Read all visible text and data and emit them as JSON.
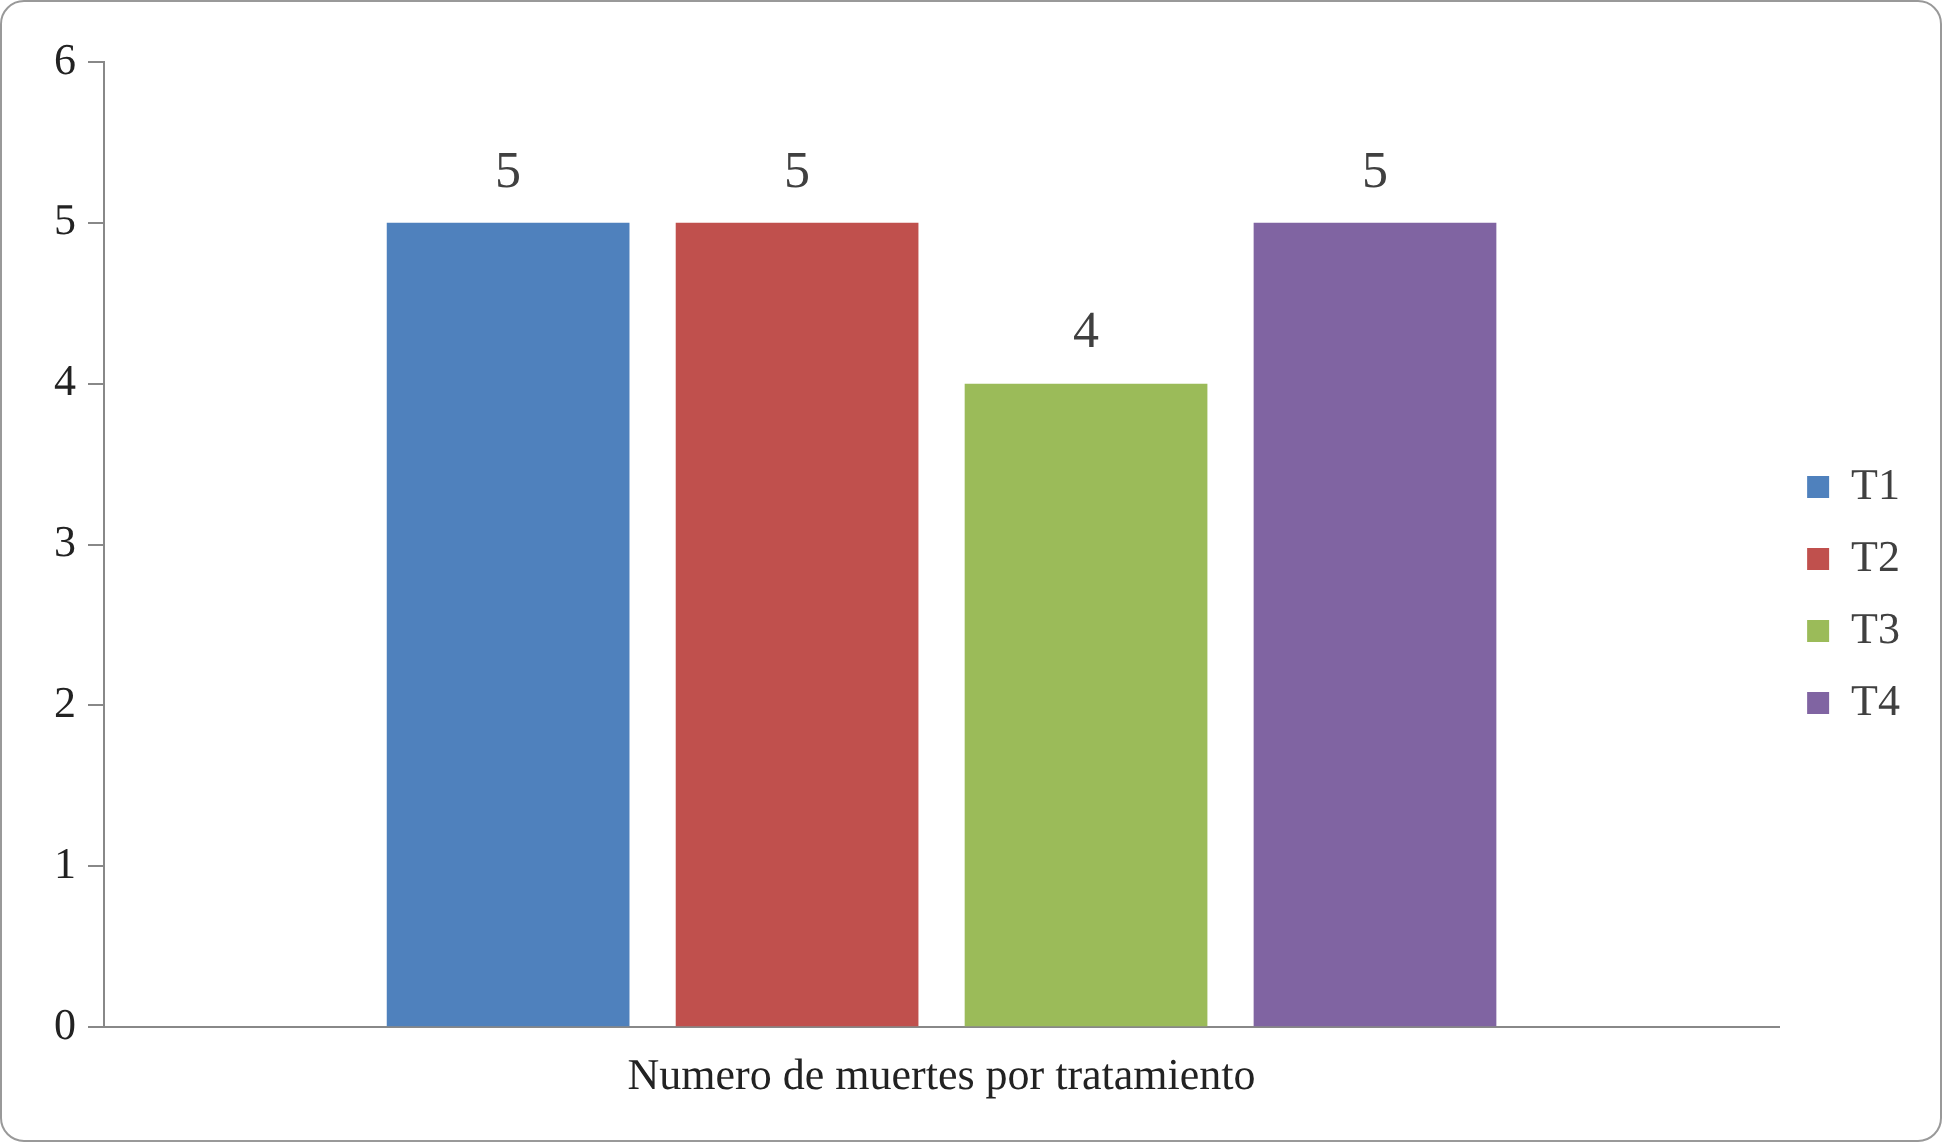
{
  "chart_data": {
    "type": "bar",
    "categories": [
      "Numero de muertes por tratamiento"
    ],
    "series": [
      {
        "name": "T1",
        "color": "#4f81bd",
        "values": [
          5
        ]
      },
      {
        "name": "T2",
        "color": "#c0504d",
        "values": [
          5
        ]
      },
      {
        "name": "T3",
        "color": "#9bbb59",
        "values": [
          4
        ]
      },
      {
        "name": "T4",
        "color": "#8064a2",
        "values": [
          5
        ]
      }
    ],
    "ylim": [
      0,
      6
    ],
    "yticks": [
      0,
      1,
      2,
      3,
      4,
      5,
      6
    ],
    "grid": false,
    "legend": "right",
    "data_labels": true
  }
}
